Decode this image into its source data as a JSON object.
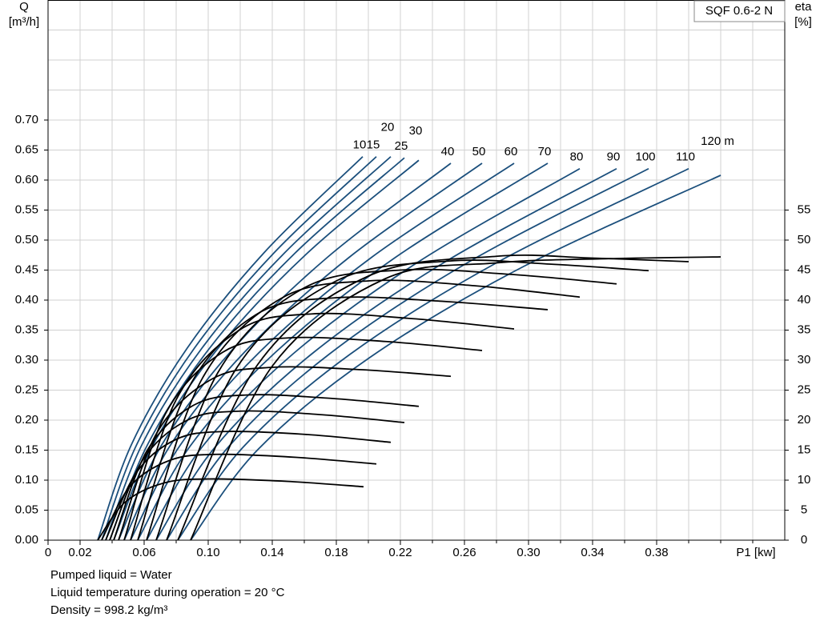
{
  "chart_data": {
    "type": "line",
    "product": "SQF 0.6-2 N",
    "ylabel": [
      "Q",
      "[m³/h]"
    ],
    "y2label": [
      "eta",
      "[%]"
    ],
    "xlabel": "P1 [kw]",
    "xlim": [
      0,
      0.46
    ],
    "ylim": [
      0,
      0.9
    ],
    "y2lim": [
      0,
      90
    ],
    "grid": true,
    "xticks": [
      0,
      0.02,
      0.06,
      {
        "value": 0.1,
        "label": "0.10"
      },
      0.14,
      0.18,
      0.22,
      0.26,
      {
        "value": 0.3,
        "label": "0.30"
      },
      0.34,
      0.38
    ],
    "xminorticks": [
      0.04,
      0.08,
      0.12,
      0.16,
      0.2,
      0.24,
      0.28,
      0.32,
      0.36,
      0.4,
      0.42,
      0.44
    ],
    "yticks": [
      {
        "value": 0,
        "label": "0.00"
      },
      0.05,
      {
        "value": 0.1,
        "label": "0.10"
      },
      0.15,
      {
        "value": 0.2,
        "label": "0.20"
      },
      0.25,
      {
        "value": 0.3,
        "label": "0.30"
      },
      0.35,
      {
        "value": 0.4,
        "label": "0.40"
      },
      0.45,
      {
        "value": 0.5,
        "label": "0.50"
      },
      0.55,
      {
        "value": 0.6,
        "label": "0.60"
      },
      0.65,
      {
        "value": 0.7,
        "label": "0.70"
      }
    ],
    "yminorticks": [
      0.75,
      0.8,
      0.85
    ],
    "y2ticks": [
      0,
      5,
      10,
      15,
      20,
      25,
      30,
      35,
      40,
      45,
      50,
      55
    ],
    "series": [
      {
        "name": "10",
        "color": "#1b4f7c",
        "x": [
          0.031,
          0.0522,
          0.0869,
          0.1349,
          0.1965
        ],
        "values": [
          0,
          0.16,
          0.32,
          0.479,
          0.639
        ]
      },
      {
        "name": "15",
        "color": "#1b4f7c",
        "x": [
          0.0335,
          0.0555,
          0.0914,
          0.1412,
          0.205
        ],
        "values": [
          0,
          0.16,
          0.32,
          0.479,
          0.639
        ]
      },
      {
        "name": "20",
        "color": "#1b4f7c",
        "x": [
          0.036,
          0.0588,
          0.0961,
          0.1478,
          0.214
        ],
        "values": [
          0,
          0.16,
          0.32,
          0.479,
          0.639
        ]
      },
      {
        "name": "25",
        "color": "#1b4f7c",
        "x": [
          0.0385,
          0.0621,
          0.1006,
          0.1541,
          0.2225
        ],
        "values": [
          0,
          0.159,
          0.319,
          0.478,
          0.637
        ]
      },
      {
        "name": "30",
        "color": "#1b4f7c",
        "x": [
          0.041,
          0.0654,
          0.1053,
          0.1606,
          0.2315
        ],
        "values": [
          0,
          0.158,
          0.317,
          0.475,
          0.633
        ]
      },
      {
        "name": "40",
        "color": "#1b4f7c",
        "x": [
          0.044,
          0.0706,
          0.114,
          0.1743,
          0.2515
        ],
        "values": [
          0,
          0.157,
          0.314,
          0.471,
          0.628
        ]
      },
      {
        "name": "50",
        "color": "#1b4f7c",
        "x": [
          0.0475,
          0.0761,
          0.1229,
          0.1879,
          0.271
        ],
        "values": [
          0,
          0.157,
          0.314,
          0.471,
          0.628
        ]
      },
      {
        "name": "60",
        "color": "#1b4f7c",
        "x": [
          0.0515,
          0.0822,
          0.1323,
          0.2019,
          0.291
        ],
        "values": [
          0,
          0.157,
          0.314,
          0.471,
          0.628
        ]
      },
      {
        "name": "70",
        "color": "#1b4f7c",
        "x": [
          0.056,
          0.0888,
          0.1424,
          0.2168,
          0.312
        ],
        "values": [
          0,
          0.157,
          0.314,
          0.471,
          0.628
        ]
      },
      {
        "name": "80",
        "color": "#1b4f7c",
        "x": [
          0.0615,
          0.0961,
          0.1528,
          0.2314,
          0.332
        ],
        "values": [
          0,
          0.155,
          0.31,
          0.464,
          0.619
        ]
      },
      {
        "name": "90",
        "color": "#1b4f7c",
        "x": [
          0.0675,
          0.1043,
          0.1645,
          0.2481,
          0.355
        ],
        "values": [
          0,
          0.155,
          0.31,
          0.464,
          0.619
        ]
      },
      {
        "name": "100",
        "color": "#1b4f7c",
        "x": [
          0.074,
          0.1125,
          0.1756,
          0.263,
          0.375
        ],
        "values": [
          0,
          0.155,
          0.31,
          0.464,
          0.619
        ]
      },
      {
        "name": "110",
        "color": "#1b4f7c",
        "x": [
          0.081,
          0.1218,
          0.1887,
          0.2813,
          0.4
        ],
        "values": [
          0,
          0.155,
          0.31,
          0.464,
          0.619
        ]
      },
      {
        "name": "120 m",
        "color": "#1b4f7c",
        "x": [
          0.089,
          0.1314,
          0.2007,
          0.2969,
          0.42
        ],
        "values": [
          0,
          0.152,
          0.304,
          0.456,
          0.608
        ]
      },
      {
        "axis": "y2",
        "color": "#000000",
        "x": [
          0.031,
          0.048,
          0.072,
          0.1,
          0.149,
          0.197
        ],
        "values": [
          0,
          6.3,
          9.5,
          10.2,
          9.8,
          8.9
        ]
      },
      {
        "axis": "y2",
        "color": "#000000",
        "x": [
          0.0335,
          0.051,
          0.076,
          0.105,
          0.155,
          0.205
        ],
        "values": [
          0,
          8.9,
          13.3,
          14.3,
          13.8,
          12.7
        ]
      },
      {
        "axis": "y2",
        "color": "#000000",
        "x": [
          0.036,
          0.055,
          0.08,
          0.11,
          0.162,
          0.214
        ],
        "values": [
          0,
          11.2,
          16.8,
          18.1,
          17.6,
          16.3
        ]
      },
      {
        "axis": "y2",
        "color": "#000000",
        "x": [
          0.0385,
          0.059,
          0.087,
          0.12,
          0.171,
          0.2225
        ],
        "values": [
          0,
          13.3,
          20.0,
          21.5,
          20.9,
          19.6
        ]
      },
      {
        "axis": "y2",
        "color": "#000000",
        "x": [
          0.041,
          0.062,
          0.091,
          0.125,
          0.178,
          0.2315
        ],
        "values": [
          0,
          15.0,
          22.5,
          24.2,
          23.6,
          22.3
        ]
      },
      {
        "axis": "y2",
        "color": "#000000",
        "x": [
          0.044,
          0.068,
          0.102,
          0.14,
          0.196,
          0.2515
        ],
        "values": [
          0,
          17.9,
          26.8,
          28.8,
          28.4,
          27.3
        ]
      },
      {
        "axis": "y2",
        "color": "#000000",
        "x": [
          0.0475,
          0.073,
          0.109,
          0.15,
          0.211,
          0.271
        ],
        "values": [
          0,
          20.9,
          31.3,
          33.7,
          33.1,
          31.6
        ]
      },
      {
        "axis": "y2",
        "color": "#000000",
        "x": [
          0.0515,
          0.08,
          0.12,
          0.165,
          0.228,
          0.291
        ],
        "values": [
          0,
          23.4,
          35.1,
          37.7,
          36.9,
          35.2
        ]
      },
      {
        "axis": "y2",
        "color": "#000000",
        "x": [
          0.056,
          0.087,
          0.13,
          0.18,
          0.246,
          0.312
        ],
        "values": [
          0,
          25.0,
          37.6,
          40.4,
          39.8,
          38.4
        ]
      },
      {
        "axis": "y2",
        "color": "#000000",
        "x": [
          0.0615,
          0.096,
          0.145,
          0.2,
          0.266,
          0.332
        ],
        "values": [
          0,
          26.8,
          40.2,
          43.2,
          42.4,
          40.5
        ]
      },
      {
        "axis": "y2",
        "color": "#000000",
        "x": [
          0.0675,
          0.106,
          0.159,
          0.22,
          0.288,
          0.355
        ],
        "values": [
          0,
          27.9,
          41.9,
          45.0,
          44.3,
          42.7
        ]
      },
      {
        "axis": "y2",
        "color": "#000000",
        "x": [
          0.074,
          0.118,
          0.18,
          0.25,
          0.313,
          0.375
        ],
        "values": [
          0,
          28.8,
          43.2,
          46.5,
          46.0,
          44.9
        ]
      },
      {
        "axis": "y2",
        "color": "#000000",
        "x": [
          0.081,
          0.131,
          0.2,
          0.28,
          0.34,
          0.4
        ],
        "values": [
          0,
          29.3,
          44.0,
          47.3,
          47.0,
          46.4
        ]
      },
      {
        "axis": "y2",
        "color": "#000000",
        "x": [
          0.089,
          0.14,
          0.21,
          0.28,
          0.35,
          0.42
        ],
        "values": [
          0,
          29,
          43.5,
          46.2,
          46.9,
          47.2
        ]
      }
    ],
    "notes": [
      "Pumped liquid = Water",
      "Liquid temperature during operation = 20 °C",
      "Density = 998.2 kg/m³"
    ]
  }
}
